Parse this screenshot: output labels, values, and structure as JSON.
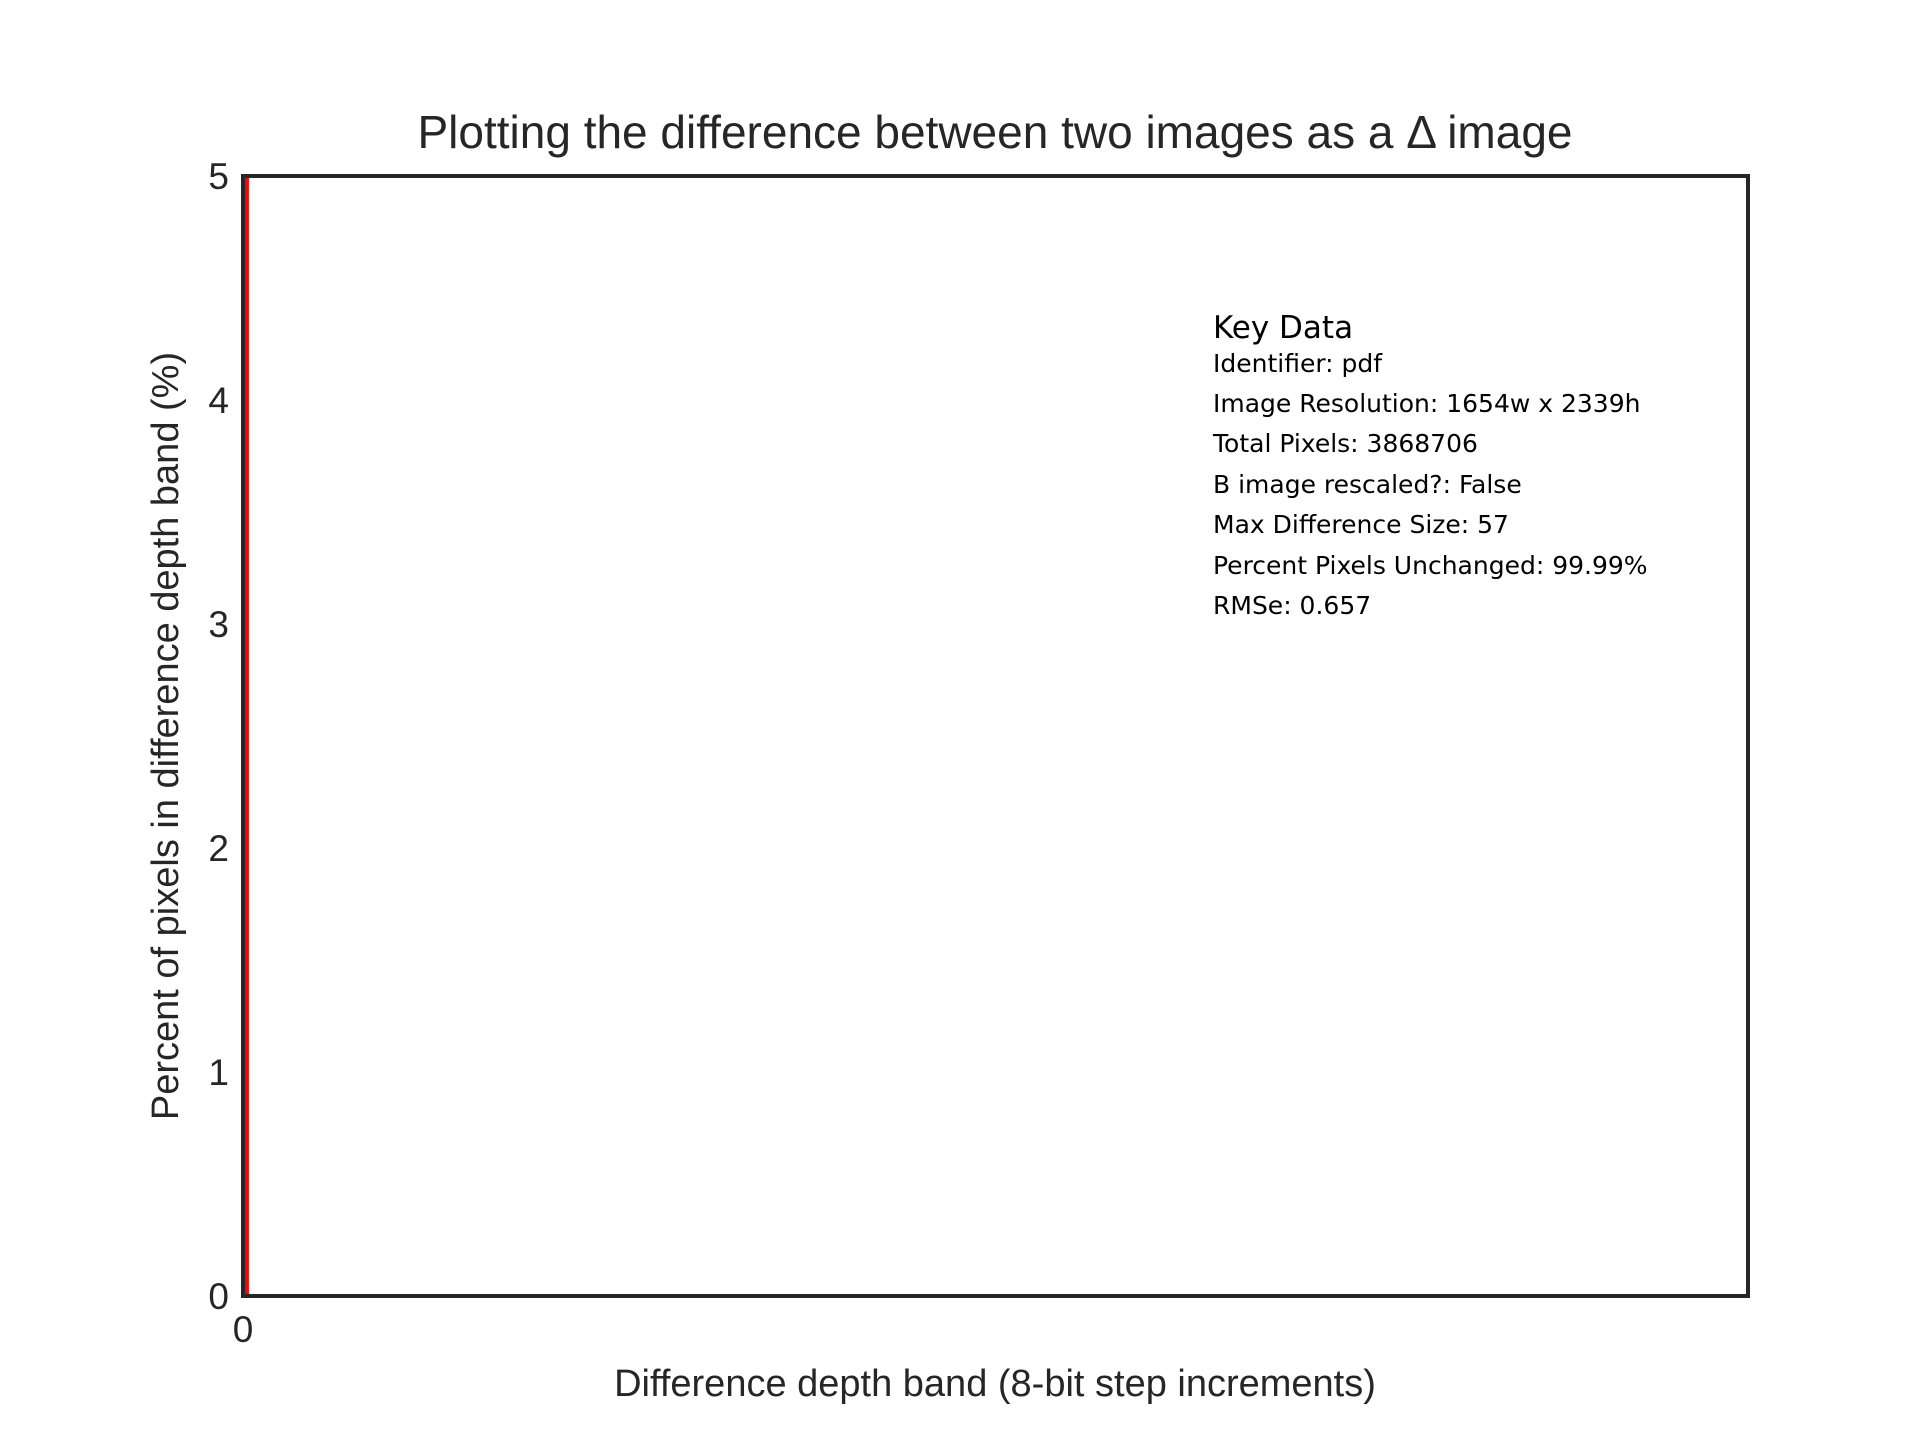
{
  "chart_data": {
    "type": "bar",
    "title": "Plotting the difference between two images as a Δ image",
    "xlabel": "Difference depth band (8-bit step increments)",
    "ylabel": "Percent of pixels in difference depth band (%)",
    "xlim": [
      0,
      255
    ],
    "ylim": [
      0,
      5
    ],
    "x_ticks": [
      "0"
    ],
    "y_ticks": [
      "0",
      "1",
      "2",
      "3",
      "4",
      "5"
    ],
    "grid": false,
    "bar_color": "#ff0000",
    "bars": [
      {
        "x": 1,
        "value": 5
      }
    ]
  },
  "key_data": {
    "heading": "Key Data",
    "lines": [
      "Identifier: pdf",
      "Image Resolution: 1654w x 2339h",
      "Total Pixels: 3868706",
      "B image rescaled?: False",
      "Max Difference Size: 57",
      "Percent Pixels Unchanged: 99.99%",
      "RMSe: 0.657"
    ]
  }
}
